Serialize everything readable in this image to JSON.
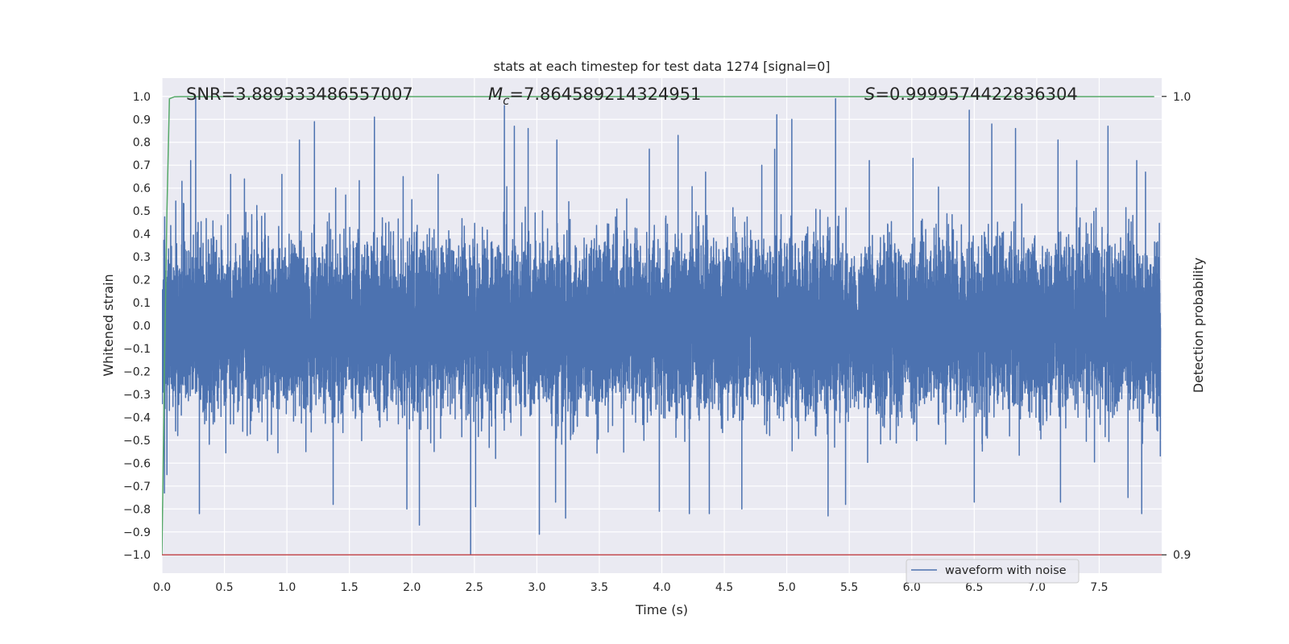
{
  "chart_data": {
    "type": "line",
    "title": "stats at each timestep for test data 1274 [signal=0]",
    "xlabel": "Time (s)",
    "ylabel": "Whitened strain",
    "y2label": "Detection probability",
    "xlim": [
      0.0,
      8.0
    ],
    "ylim": [
      -1.08,
      1.08
    ],
    "y2lim": [
      0.9,
      1.0
    ],
    "x_ticks": [
      "0.0",
      "0.5",
      "1.0",
      "1.5",
      "2.0",
      "2.5",
      "3.0",
      "3.5",
      "4.0",
      "4.5",
      "5.0",
      "5.5",
      "6.0",
      "6.5",
      "7.0",
      "7.5"
    ],
    "y_ticks": [
      "1.0",
      "0.9",
      "0.8",
      "0.7",
      "0.6",
      "0.5",
      "0.4",
      "0.3",
      "0.2",
      "0.1",
      "0.0",
      "−0.1",
      "−0.2",
      "−0.3",
      "−0.4",
      "−0.5",
      "−0.6",
      "−0.7",
      "−0.8",
      "−0.9",
      "−1.0"
    ],
    "y2_ticks": [
      "1.0",
      "0.9"
    ],
    "grid": true,
    "legend": {
      "placement": "lower-right",
      "entries": [
        "waveform with noise"
      ]
    },
    "annotations": {
      "snr_text": "SNR=3.889333486557007",
      "mc_symbol": "M",
      "mc_sub": "c",
      "mc_value": "=7.864589214324951",
      "s_symbol": "S",
      "s_value": "=0.9999574422836304"
    },
    "series": [
      {
        "name": "waveform with noise",
        "axis": "left",
        "color": "#4c72b0",
        "noise": {
          "sample_rate_hz": 2048,
          "duration_s": 7.99,
          "sigma": 0.17,
          "min": -1.0,
          "max": 1.0
        },
        "peaks": [
          [
            0.27,
            1.0
          ],
          [
            0.23,
            0.72
          ],
          [
            0.16,
            0.63
          ],
          [
            0.55,
            0.66
          ],
          [
            0.66,
            0.64
          ],
          [
            0.96,
            0.66
          ],
          [
            1.1,
            0.81
          ],
          [
            1.22,
            0.89
          ],
          [
            1.39,
            0.6
          ],
          [
            1.47,
            0.57
          ],
          [
            1.7,
            0.91
          ],
          [
            1.93,
            0.65
          ],
          [
            2.21,
            0.66
          ],
          [
            2.74,
            0.96
          ],
          [
            2.82,
            0.87
          ],
          [
            2.93,
            0.86
          ],
          [
            3.02,
            0.8
          ],
          [
            3.16,
            0.81
          ],
          [
            3.9,
            0.77
          ],
          [
            4.13,
            0.83
          ],
          [
            4.35,
            0.67
          ],
          [
            4.8,
            0.7
          ],
          [
            4.92,
            0.92
          ],
          [
            5.04,
            0.9
          ],
          [
            5.39,
            0.99
          ],
          [
            5.66,
            0.72
          ],
          [
            6.01,
            0.73
          ],
          [
            6.46,
            0.94
          ],
          [
            6.64,
            0.88
          ],
          [
            6.83,
            0.86
          ],
          [
            7.17,
            0.81
          ],
          [
            7.32,
            0.72
          ],
          [
            7.57,
            0.87
          ],
          [
            7.8,
            0.72
          ],
          [
            7.87,
            0.67
          ],
          [
            0.02,
            -0.73
          ],
          [
            0.3,
            -0.82
          ],
          [
            1.37,
            -0.78
          ],
          [
            2.06,
            -0.87
          ],
          [
            1.96,
            -0.8
          ],
          [
            2.47,
            -1.0
          ],
          [
            2.51,
            -0.79
          ],
          [
            3.02,
            -0.91
          ],
          [
            3.23,
            -0.84
          ],
          [
            3.15,
            -0.77
          ],
          [
            3.98,
            -0.81
          ],
          [
            4.22,
            -0.82
          ],
          [
            4.38,
            -0.82
          ],
          [
            4.64,
            -0.8
          ],
          [
            5.33,
            -0.83
          ],
          [
            5.47,
            -0.78
          ],
          [
            6.5,
            -0.77
          ],
          [
            7.19,
            -0.77
          ],
          [
            7.84,
            -0.82
          ],
          [
            0.04,
            -0.65
          ],
          [
            7.73,
            -0.75
          ]
        ]
      },
      {
        "name": "",
        "axis": "right",
        "color": "#55a868",
        "x": [
          0.0,
          0.02,
          0.04,
          0.06,
          0.1,
          0.15,
          0.25,
          1.0,
          2.0,
          3.0,
          4.0,
          5.0,
          6.0,
          7.0,
          7.94
        ],
        "y": [
          0.9,
          0.94,
          0.975,
          0.9995,
          0.99992,
          0.99996,
          0.99996,
          0.99996,
          0.99996,
          0.99996,
          0.99996,
          0.99996,
          0.99996,
          0.99996,
          0.99996
        ]
      },
      {
        "name": "",
        "axis": "left",
        "color": "#c44e52",
        "x": [
          0.0,
          8.0
        ],
        "y": [
          -1.0,
          -1.0
        ]
      }
    ]
  }
}
